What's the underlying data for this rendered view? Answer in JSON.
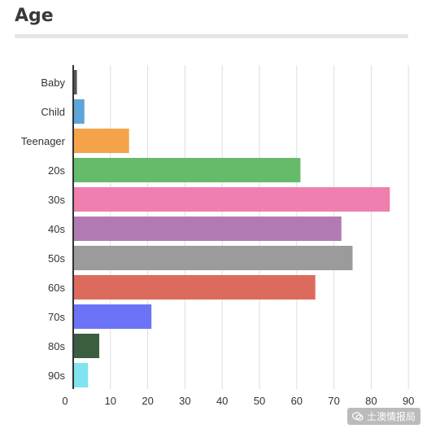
{
  "header": {
    "title": "Age"
  },
  "chart_data": {
    "type": "bar",
    "orientation": "horizontal",
    "title": "Age",
    "categories": [
      "Baby",
      "Child",
      "Teenager",
      "20s",
      "30s",
      "40s",
      "50s",
      "60s",
      "70s",
      "80s",
      "90s"
    ],
    "values": [
      1,
      3,
      15,
      61,
      85,
      72,
      75,
      65,
      21,
      7,
      4
    ],
    "colors": [
      "#555555",
      "#5fa5d9",
      "#f5a34a",
      "#66bb6a",
      "#ef7fae",
      "#b27ab3",
      "#9b9b9b",
      "#dc6b5e",
      "#6c73f6",
      "#3b5e40",
      "#7fe3f0"
    ],
    "x_ticks": [
      0,
      10,
      20,
      30,
      40,
      50,
      60,
      70,
      80,
      90
    ],
    "xlim": [
      0,
      90
    ],
    "grid": "vertical"
  },
  "watermark": {
    "text": "土澳情报局",
    "icon": "wechat-icon"
  }
}
